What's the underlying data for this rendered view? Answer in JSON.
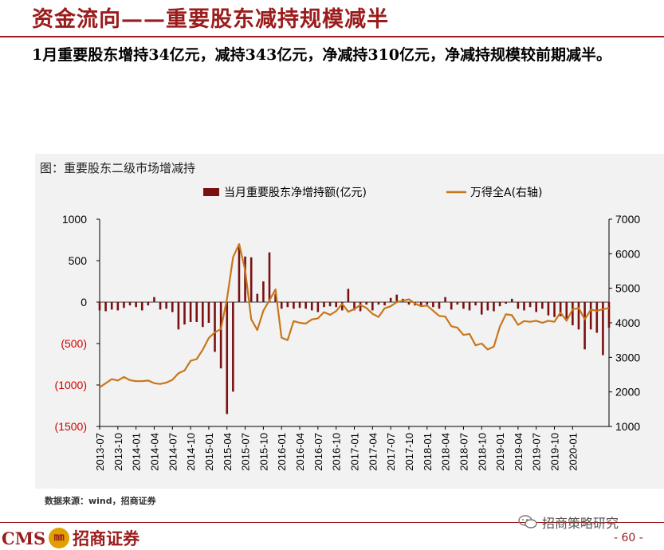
{
  "header": {
    "title": "资金流向——重要股东减持规模减半",
    "subtitle": "1月重要股东增持34亿元，减持343亿元，净减持310亿元，净减持规模较前期减半。"
  },
  "chart_data": {
    "type": "bar+line",
    "title": "图：重要股东二级市场增减持",
    "left_axis": {
      "ylim": [
        -1500,
        1000
      ],
      "ticks": [
        1000,
        500,
        0,
        -500,
        -1000,
        -1500
      ],
      "tick_labels": [
        "1000",
        "500",
        "0",
        "(500)",
        "(1000)",
        "(1500)"
      ],
      "negative_color": "#d00000"
    },
    "right_axis": {
      "ylim": [
        1000,
        7000
      ],
      "ticks": [
        7000,
        6000,
        5000,
        4000,
        3000,
        2000,
        1000
      ],
      "tick_labels": [
        "7000",
        "6000",
        "5000",
        "4000",
        "3000",
        "2000",
        "1000"
      ]
    },
    "x_tick_labels": [
      "2013-07",
      "2013-10",
      "2014-01",
      "2014-04",
      "2014-07",
      "2014-10",
      "2015-01",
      "2015-04",
      "2015-07",
      "2015-10",
      "2016-01",
      "2016-04",
      "2016-07",
      "2016-10",
      "2017-01",
      "2017-04",
      "2017-07",
      "2017-10",
      "2018-01",
      "2018-04",
      "2018-07",
      "2018-10",
      "2019-01",
      "2019-04",
      "2019-07",
      "2019-10",
      "2020-01"
    ],
    "legend_position": "top",
    "series": [
      {
        "name": "当月重要股东净增持额(亿元)",
        "type": "bar",
        "axis": "left",
        "color": "#7b1010",
        "values": [
          -100,
          -110,
          -90,
          -100,
          -70,
          -40,
          -60,
          -100,
          -40,
          60,
          -90,
          -80,
          -120,
          -330,
          -270,
          -240,
          -240,
          -300,
          -250,
          -600,
          -800,
          -1350,
          -1080,
          700,
          550,
          540,
          100,
          250,
          600,
          100,
          -80,
          -60,
          -80,
          -70,
          -80,
          -100,
          -120,
          -60,
          -50,
          -60,
          -100,
          160,
          -100,
          -110,
          -30,
          -100,
          -30,
          -40,
          50,
          90,
          40,
          -30,
          -40,
          -50,
          -30,
          -60,
          -80,
          60,
          -90,
          -30,
          -80,
          -100,
          -40,
          -150,
          -100,
          -110,
          -50,
          -20,
          40,
          -80,
          -100,
          -60,
          -120,
          -80,
          -160,
          -180,
          -170,
          -200,
          -280,
          -330,
          -570,
          -330,
          -370,
          -640,
          -310
        ]
      },
      {
        "name": "万得全A(右轴)",
        "type": "line",
        "axis": "right",
        "color": "#c8761a",
        "values": [
          2130,
          2250,
          2370,
          2330,
          2430,
          2340,
          2310,
          2310,
          2330,
          2250,
          2230,
          2270,
          2350,
          2540,
          2620,
          2900,
          2950,
          3220,
          3560,
          3720,
          3820,
          4700,
          5900,
          6280,
          5520,
          4100,
          3790,
          4350,
          4650,
          4970,
          3570,
          3500,
          4050,
          4000,
          3980,
          4100,
          4130,
          4310,
          4230,
          4340,
          4550,
          4320,
          4400,
          4520,
          4430,
          4260,
          4170,
          4420,
          4480,
          4600,
          4640,
          4680,
          4560,
          4480,
          4500,
          4350,
          4200,
          4180,
          3900,
          3860,
          3650,
          3680,
          3350,
          3400,
          3230,
          3310,
          3890,
          4250,
          4220,
          3940,
          4050,
          4030,
          4060,
          4000,
          4060,
          4030,
          4300,
          4060,
          4390,
          4430,
          4100,
          4380,
          4350,
          4390,
          4430
        ]
      }
    ]
  },
  "footer": {
    "source": "数据来源：wind，招商证券",
    "logo_text": "CMS",
    "logo_cn": "招商证券",
    "wechat_label": "招商策略研究",
    "page": "- 60 -"
  }
}
